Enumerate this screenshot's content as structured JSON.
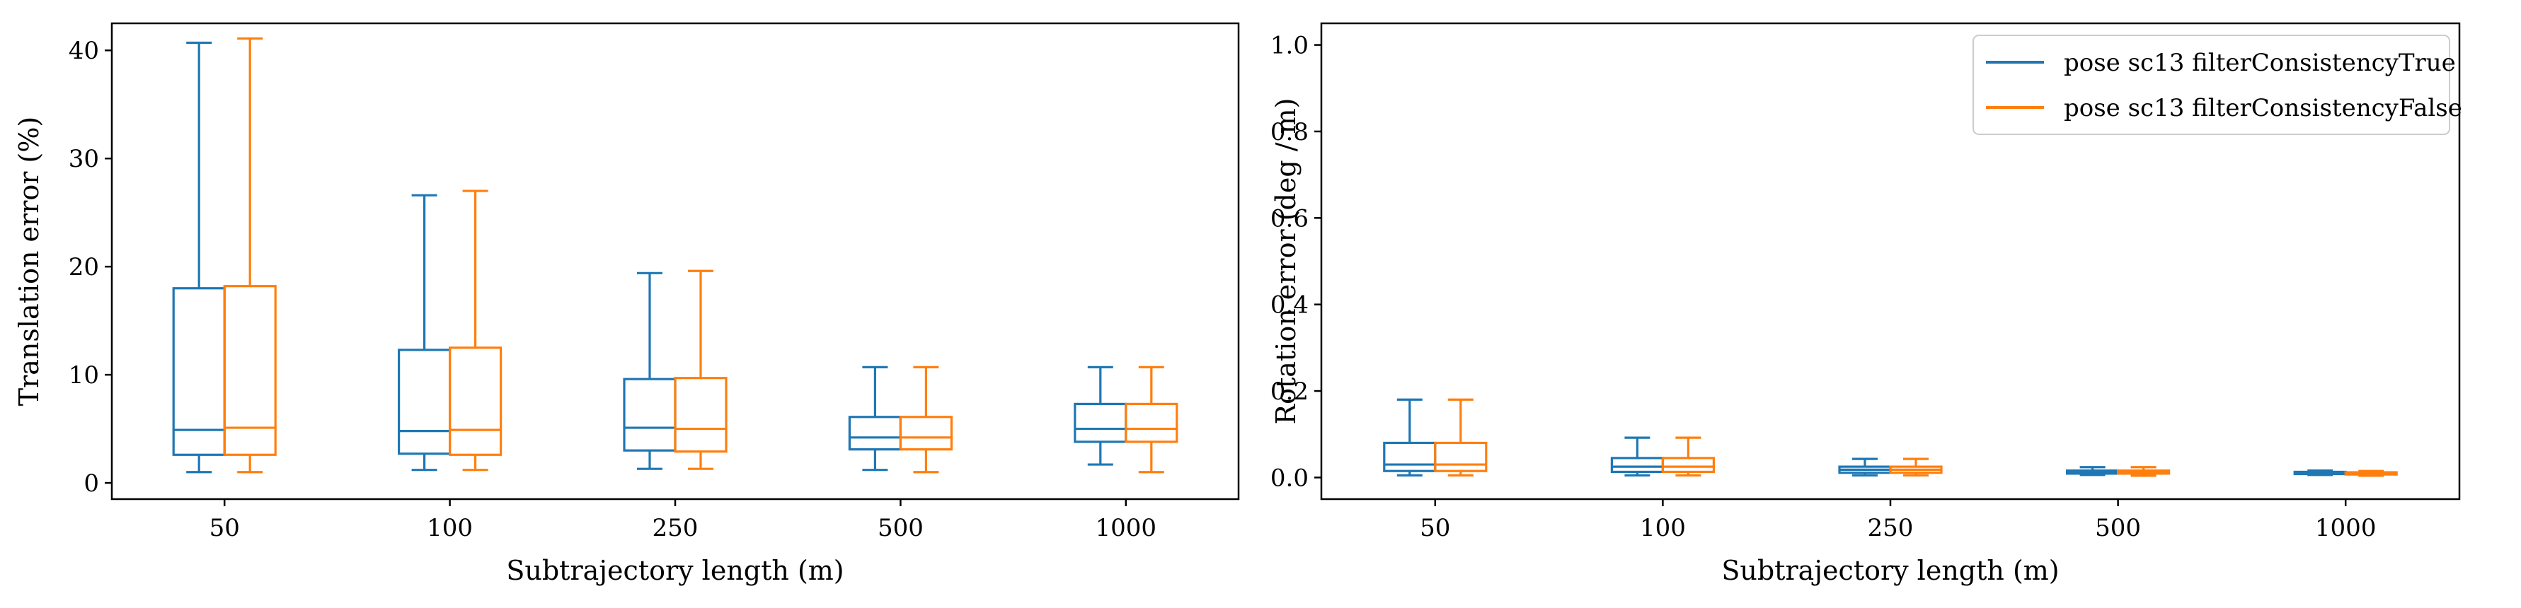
{
  "chart_data": [
    {
      "type": "box",
      "xlabel": "Subtrajectory length (m)",
      "ylabel": "Translation error (%)",
      "categories": [
        "50",
        "100",
        "250",
        "500",
        "1000"
      ],
      "ylim": [
        -1.5,
        42.5
      ],
      "yticks": [
        0,
        10,
        20,
        30,
        40
      ],
      "grid": false,
      "series": [
        {
          "name": "pose sc13 filterConsistencyTrue",
          "color": "#1f77b4",
          "boxes": [
            {
              "whislo": 1.0,
              "q1": 2.6,
              "med": 4.9,
              "q3": 18.0,
              "whishi": 40.7
            },
            {
              "whislo": 1.2,
              "q1": 2.7,
              "med": 4.8,
              "q3": 12.3,
              "whishi": 26.6
            },
            {
              "whislo": 1.3,
              "q1": 3.0,
              "med": 5.1,
              "q3": 9.6,
              "whishi": 19.4
            },
            {
              "whislo": 1.2,
              "q1": 3.1,
              "med": 4.2,
              "q3": 6.1,
              "whishi": 10.7
            },
            {
              "whislo": 1.7,
              "q1": 3.8,
              "med": 5.0,
              "q3": 7.3,
              "whishi": 10.7
            }
          ]
        },
        {
          "name": "pose sc13 filterConsistencyFalse",
          "color": "#ff7f0e",
          "boxes": [
            {
              "whislo": 1.0,
              "q1": 2.6,
              "med": 5.1,
              "q3": 18.2,
              "whishi": 41.1
            },
            {
              "whislo": 1.2,
              "q1": 2.6,
              "med": 4.9,
              "q3": 12.5,
              "whishi": 27.0
            },
            {
              "whislo": 1.3,
              "q1": 2.9,
              "med": 5.0,
              "q3": 9.7,
              "whishi": 19.6
            },
            {
              "whislo": 1.0,
              "q1": 3.1,
              "med": 4.2,
              "q3": 6.1,
              "whishi": 10.7
            },
            {
              "whislo": 1.0,
              "q1": 3.8,
              "med": 5.0,
              "q3": 7.3,
              "whishi": 10.7
            }
          ]
        }
      ]
    },
    {
      "type": "box",
      "xlabel": "Subtrajectory length (m)",
      "ylabel": "Rotation error (deg / m)",
      "categories": [
        "50",
        "100",
        "250",
        "500",
        "1000"
      ],
      "ylim": [
        -0.05,
        1.05
      ],
      "yticks": [
        "0.0",
        "0.2",
        "0.4",
        "0.6",
        "0.8",
        "1.0"
      ],
      "grid": false,
      "legend": {
        "placement": "top-right",
        "entries": [
          "pose sc13 filterConsistencyTrue",
          "pose sc13 filterConsistencyFalse"
        ]
      },
      "series": [
        {
          "name": "pose sc13 filterConsistencyTrue",
          "color": "#1f77b4",
          "boxes": [
            {
              "whislo": 0.005,
              "q1": 0.015,
              "med": 0.03,
              "q3": 0.08,
              "whishi": 0.18
            },
            {
              "whislo": 0.005,
              "q1": 0.013,
              "med": 0.025,
              "q3": 0.045,
              "whishi": 0.092
            },
            {
              "whislo": 0.005,
              "q1": 0.011,
              "med": 0.018,
              "q3": 0.025,
              "whishi": 0.043
            },
            {
              "whislo": 0.006,
              "q1": 0.009,
              "med": 0.013,
              "q3": 0.016,
              "whishi": 0.024
            },
            {
              "whislo": 0.006,
              "q1": 0.008,
              "med": 0.01,
              "q3": 0.013,
              "whishi": 0.016
            }
          ]
        },
        {
          "name": "pose sc13 filterConsistencyFalse",
          "color": "#ff7f0e",
          "boxes": [
            {
              "whislo": 0.005,
              "q1": 0.015,
              "med": 0.03,
              "q3": 0.08,
              "whishi": 0.18
            },
            {
              "whislo": 0.005,
              "q1": 0.013,
              "med": 0.025,
              "q3": 0.045,
              "whishi": 0.092
            },
            {
              "whislo": 0.005,
              "q1": 0.011,
              "med": 0.018,
              "q3": 0.025,
              "whishi": 0.043
            },
            {
              "whislo": 0.004,
              "q1": 0.009,
              "med": 0.013,
              "q3": 0.016,
              "whishi": 0.024
            },
            {
              "whislo": 0.004,
              "q1": 0.007,
              "med": 0.01,
              "q3": 0.012,
              "whishi": 0.015
            }
          ]
        }
      ]
    }
  ]
}
